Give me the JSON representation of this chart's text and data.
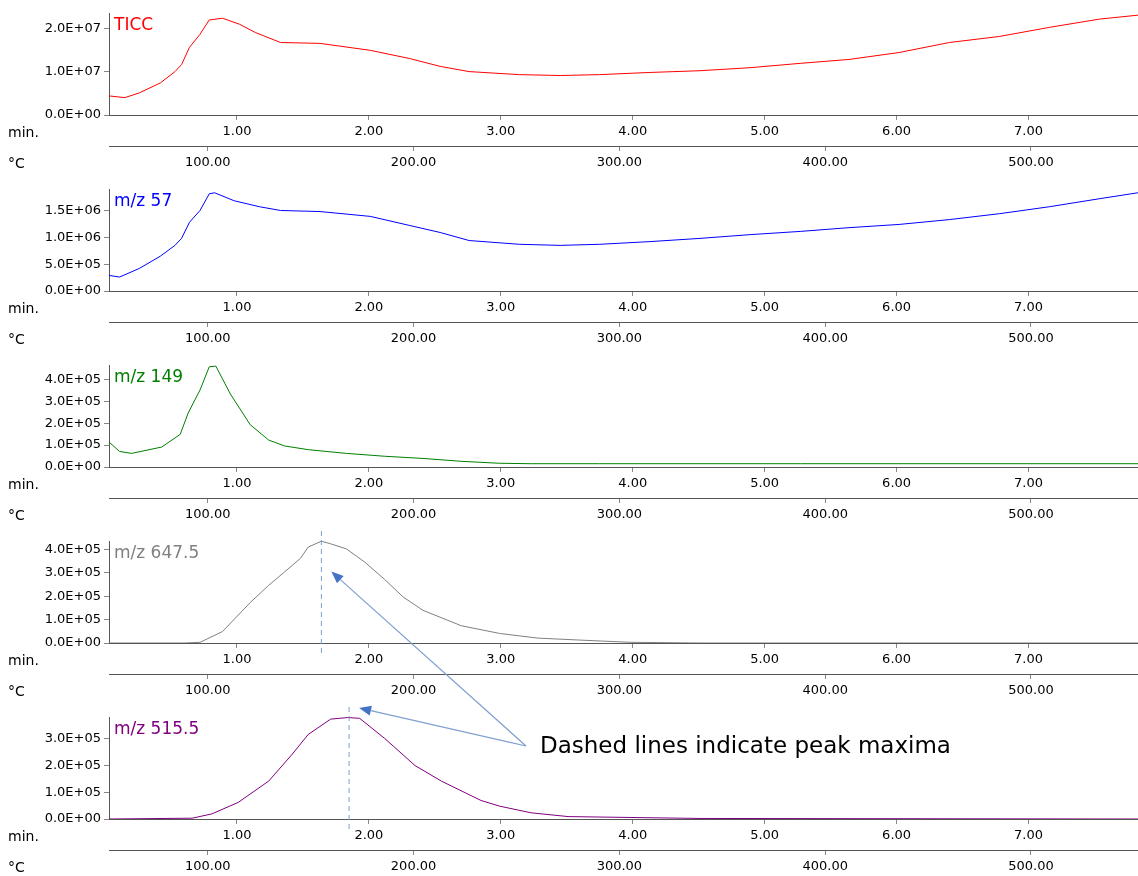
{
  "chart_data": [
    {
      "type": "line",
      "xlabel": "min.",
      "x2label": "°C",
      "xlim": [
        0.03,
        7.83
      ],
      "xticks": [
        {
          "value": 1,
          "label": "1.00"
        },
        {
          "value": 2,
          "label": "2.00"
        },
        {
          "value": 3,
          "label": "3.00"
        },
        {
          "value": 4,
          "label": "4.00"
        },
        {
          "value": 5,
          "label": "5.00"
        },
        {
          "value": 6,
          "label": "6.00"
        },
        {
          "value": 7,
          "label": "7.00"
        }
      ],
      "x2lim": [
        52,
        552
      ],
      "x2ticks": [
        {
          "value": 100,
          "label": "100.00"
        },
        {
          "value": 200,
          "label": "200.00"
        },
        {
          "value": 300,
          "label": "300.00"
        },
        {
          "value": 400,
          "label": "400.00"
        },
        {
          "value": 500,
          "label": "500.00"
        }
      ],
      "ylim": [
        0,
        23500000
      ],
      "yticks": [
        {
          "value": 0,
          "label": "0.0E+00"
        },
        {
          "value": 10000000,
          "label": "1.0E+07"
        },
        {
          "value": 20000000,
          "label": "2.0E+07"
        }
      ],
      "series": [
        {
          "name": "TICC",
          "color": "#ff0000",
          "x": [
            0.03,
            0.15,
            0.26,
            0.42,
            0.53,
            0.58,
            0.64,
            0.72,
            0.79,
            0.89,
            1.02,
            1.14,
            1.33,
            1.63,
            2.01,
            2.31,
            2.54,
            2.76,
            3.14,
            3.45,
            3.75,
            4.13,
            4.51,
            4.89,
            5.27,
            5.64,
            6.02,
            6.4,
            6.78,
            7.16,
            7.54,
            7.83
          ],
          "values": [
            4400000,
            4000000,
            5100000,
            7400000,
            10000000,
            11600000,
            15600000,
            18600000,
            21900000,
            22300000,
            20900000,
            19000000,
            16700000,
            16500000,
            14900000,
            13000000,
            11200000,
            10000000,
            9300000,
            9100000,
            9300000,
            9800000,
            10200000,
            10900000,
            11900000,
            12800000,
            14400000,
            16700000,
            18100000,
            20200000,
            22100000,
            23000000
          ]
        }
      ]
    },
    {
      "type": "line",
      "xlabel": "min.",
      "x2label": "°C",
      "xlim": [
        0.03,
        7.83
      ],
      "xticks": [
        {
          "value": 1,
          "label": "1.00"
        },
        {
          "value": 2,
          "label": "2.00"
        },
        {
          "value": 3,
          "label": "3.00"
        },
        {
          "value": 4,
          "label": "4.00"
        },
        {
          "value": 5,
          "label": "5.00"
        },
        {
          "value": 6,
          "label": "6.00"
        },
        {
          "value": 7,
          "label": "7.00"
        }
      ],
      "x2lim": [
        52,
        552
      ],
      "x2ticks": [
        {
          "value": 100,
          "label": "100.00"
        },
        {
          "value": 200,
          "label": "200.00"
        },
        {
          "value": 300,
          "label": "300.00"
        },
        {
          "value": 400,
          "label": "400.00"
        },
        {
          "value": 500,
          "label": "500.00"
        }
      ],
      "ylim": [
        0,
        1900000
      ],
      "yticks": [
        {
          "value": 0,
          "label": "0.0E+00"
        },
        {
          "value": 500000,
          "label": "5.0E+05"
        },
        {
          "value": 1000000,
          "label": "1.0E+06"
        },
        {
          "value": 1500000,
          "label": "1.5E+06"
        }
      ],
      "series": [
        {
          "name": "m/z 57",
          "color": "#0000ff",
          "x": [
            0.03,
            0.11,
            0.26,
            0.42,
            0.53,
            0.58,
            0.64,
            0.72,
            0.79,
            0.83,
            0.98,
            1.17,
            1.33,
            1.63,
            2.01,
            2.31,
            2.54,
            2.76,
            3.14,
            3.45,
            3.75,
            4.13,
            4.51,
            4.89,
            5.27,
            5.64,
            6.02,
            6.4,
            6.78,
            7.16,
            7.54,
            7.83
          ],
          "values": [
            290000,
            260000,
            420000,
            650000,
            850000,
            980000,
            1280000,
            1500000,
            1810000,
            1830000,
            1680000,
            1570000,
            1500000,
            1480000,
            1390000,
            1220000,
            1090000,
            940000,
            870000,
            850000,
            870000,
            920000,
            980000,
            1050000,
            1110000,
            1180000,
            1240000,
            1330000,
            1440000,
            1570000,
            1720000,
            1830000
          ]
        }
      ]
    },
    {
      "type": "line",
      "xlabel": "min.",
      "x2label": "°C",
      "xlim": [
        0.03,
        7.83
      ],
      "xticks": [
        {
          "value": 1,
          "label": "1.00"
        },
        {
          "value": 2,
          "label": "2.00"
        },
        {
          "value": 3,
          "label": "3.00"
        },
        {
          "value": 4,
          "label": "4.00"
        },
        {
          "value": 5,
          "label": "5.00"
        },
        {
          "value": 6,
          "label": "6.00"
        },
        {
          "value": 7,
          "label": "7.00"
        }
      ],
      "x2lim": [
        52,
        552
      ],
      "x2ticks": [
        {
          "value": 100,
          "label": "100.00"
        },
        {
          "value": 200,
          "label": "200.00"
        },
        {
          "value": 300,
          "label": "300.00"
        },
        {
          "value": 400,
          "label": "400.00"
        },
        {
          "value": 500,
          "label": "500.00"
        }
      ],
      "ylim": [
        0,
        465000
      ],
      "yticks": [
        {
          "value": 0,
          "label": "0.0E+00"
        },
        {
          "value": 100000,
          "label": "1.0E+05"
        },
        {
          "value": 200000,
          "label": "2.0E+05"
        },
        {
          "value": 300000,
          "label": "3.0E+05"
        },
        {
          "value": 400000,
          "label": "4.0E+05"
        }
      ],
      "series": [
        {
          "name": "m/z 149",
          "color": "#008000",
          "x": [
            0.03,
            0.11,
            0.2,
            0.43,
            0.57,
            0.63,
            0.72,
            0.79,
            0.84,
            0.95,
            1.1,
            1.24,
            1.36,
            1.54,
            1.83,
            2.12,
            2.41,
            2.7,
            2.99,
            3.23,
            3.75,
            5.27,
            7.83
          ],
          "values": [
            114000,
            71000,
            62000,
            91000,
            149000,
            246000,
            351000,
            457000,
            460000,
            333000,
            193000,
            123000,
            96000,
            79000,
            62000,
            49000,
            39000,
            26000,
            17000,
            15000,
            15000,
            15000,
            15000
          ]
        }
      ]
    },
    {
      "type": "line",
      "xlabel": "min.",
      "x2label": "°C",
      "xlim": [
        0.03,
        7.83
      ],
      "xticks": [
        {
          "value": 1,
          "label": "1.00"
        },
        {
          "value": 2,
          "label": "2.00"
        },
        {
          "value": 3,
          "label": "3.00"
        },
        {
          "value": 4,
          "label": "4.00"
        },
        {
          "value": 5,
          "label": "5.00"
        },
        {
          "value": 6,
          "label": "6.00"
        },
        {
          "value": 7,
          "label": "7.00"
        }
      ],
      "x2lim": [
        52,
        552
      ],
      "x2ticks": [
        {
          "value": 100,
          "label": "100.00"
        },
        {
          "value": 200,
          "label": "200.00"
        },
        {
          "value": 300,
          "label": "300.00"
        },
        {
          "value": 400,
          "label": "400.00"
        },
        {
          "value": 500,
          "label": "500.00"
        }
      ],
      "ylim": [
        0,
        437000
      ],
      "yticks": [
        {
          "value": 0,
          "label": "0.0E+00"
        },
        {
          "value": 100000,
          "label": "1.0E+05"
        },
        {
          "value": 200000,
          "label": "2.0E+05"
        },
        {
          "value": 300000,
          "label": "3.0E+05"
        },
        {
          "value": 400000,
          "label": "4.0E+05"
        }
      ],
      "series": [
        {
          "name": "m/z 647.5",
          "color": "#808080",
          "x": [
            0.03,
            0.6,
            0.72,
            0.89,
            1.1,
            1.24,
            1.36,
            1.48,
            1.54,
            1.64,
            1.71,
            1.83,
            1.97,
            2.12,
            2.26,
            2.41,
            2.7,
            2.99,
            3.28,
            3.58,
            3.98,
            4.51,
            7.83
          ],
          "values": [
            0,
            0,
            3000,
            49000,
            173000,
            247000,
            304000,
            362000,
            411000,
            436000,
            425000,
            403000,
            346000,
            272000,
            197000,
            140000,
            74000,
            41000,
            21000,
            13000,
            3000,
            0,
            0
          ]
        }
      ],
      "ref_lines": [
        {
          "axis": "x",
          "value": 1.64,
          "color": "#7f9fcf",
          "line_style": "dashed"
        }
      ]
    },
    {
      "type": "line",
      "xlabel": "min.",
      "x2label": "°C",
      "xlim": [
        0.03,
        7.83
      ],
      "xticks": [
        {
          "value": 1,
          "label": "1.00"
        },
        {
          "value": 2,
          "label": "2.00"
        },
        {
          "value": 3,
          "label": "3.00"
        },
        {
          "value": 4,
          "label": "4.00"
        },
        {
          "value": 5,
          "label": "5.00"
        },
        {
          "value": 6,
          "label": "6.00"
        },
        {
          "value": 7,
          "label": "7.00"
        }
      ],
      "x2lim": [
        52,
        552
      ],
      "x2ticks": [
        {
          "value": 100,
          "label": "100.00"
        },
        {
          "value": 200,
          "label": "200.00"
        },
        {
          "value": 300,
          "label": "300.00"
        },
        {
          "value": 400,
          "label": "400.00"
        },
        {
          "value": 500,
          "label": "500.00"
        }
      ],
      "ylim": [
        0,
        380000
      ],
      "yticks": [
        {
          "value": 0,
          "label": "0.0E+00"
        },
        {
          "value": 100000,
          "label": "1.0E+05"
        },
        {
          "value": 200000,
          "label": "2.0E+05"
        },
        {
          "value": 300000,
          "label": "3.0E+05"
        }
      ],
      "series": [
        {
          "name": "m/z 515.5",
          "color": "#800080",
          "x": [
            0.03,
            0.66,
            0.81,
            1.01,
            1.24,
            1.42,
            1.54,
            1.71,
            1.84,
            1.93,
            2.12,
            2.35,
            2.55,
            2.85,
            2.99,
            3.23,
            3.51,
            4.51,
            7.83
          ],
          "values": [
            0,
            3000,
            19000,
            62000,
            141000,
            242000,
            315000,
            372000,
            378000,
            375000,
            300000,
            199000,
            141000,
            69000,
            48000,
            23000,
            9000,
            2000,
            0
          ]
        }
      ],
      "ref_lines": [
        {
          "axis": "x",
          "value": 1.85,
          "color": "#7f9fcf",
          "line_style": "dashed"
        }
      ],
      "annotations": [
        "Dashed lines indicate peak maxima"
      ]
    }
  ]
}
